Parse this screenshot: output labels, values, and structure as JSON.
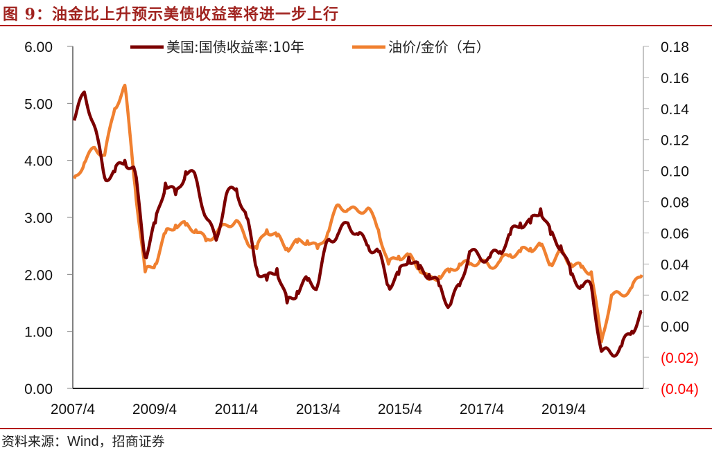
{
  "figure": {
    "title": "图 9：油金比上升预示美债收益率将进一步上行",
    "source_prefix": "资料来源：",
    "source_latin": "Wind",
    "source_suffix": "，招商证券"
  },
  "colors": {
    "title": "#a0231f",
    "rule": "#b31b1b",
    "series_yield": "#7b0000",
    "series_ratio": "#f08030",
    "negative_label": "#ff0000"
  },
  "chart_data": {
    "type": "line",
    "title": "油金比上升预示美债收益率将进一步上行",
    "xlabel": "",
    "ylabel": "",
    "y2label": "",
    "x_tick_labels": [
      "2007/4",
      "2009/4",
      "2011/4",
      "2013/4",
      "2015/4",
      "2017/4",
      "2019/4"
    ],
    "y_left": {
      "ticks": [
        "6.00",
        "5.00",
        "4.00",
        "3.00",
        "2.00",
        "1.00",
        "0.00"
      ],
      "ylim": [
        0,
        6
      ]
    },
    "y_right": {
      "ticks": [
        "0.18",
        "0.16",
        "0.14",
        "0.12",
        "0.10",
        "0.08",
        "0.06",
        "0.04",
        "0.02",
        "0.00",
        "(0.02)",
        "(0.04)"
      ],
      "ylim": [
        -0.04,
        0.18
      ]
    },
    "grid": false,
    "legend_position": "top",
    "legend": [
      "美国:国债收益率:10年",
      "油价/金价（右）"
    ],
    "x": [
      "2007/4",
      "2007/7",
      "2007/10",
      "2008/1",
      "2008/4",
      "2008/7",
      "2008/10",
      "2009/1",
      "2009/4",
      "2009/7",
      "2009/10",
      "2010/1",
      "2010/4",
      "2010/7",
      "2010/10",
      "2011/1",
      "2011/4",
      "2011/7",
      "2011/10",
      "2012/1",
      "2012/4",
      "2012/7",
      "2012/10",
      "2013/1",
      "2013/4",
      "2013/7",
      "2013/10",
      "2014/1",
      "2014/4",
      "2014/7",
      "2014/10",
      "2015/1",
      "2015/4",
      "2015/7",
      "2015/10",
      "2016/1",
      "2016/4",
      "2016/7",
      "2016/10",
      "2017/1",
      "2017/4",
      "2017/7",
      "2017/10",
      "2018/1",
      "2018/4",
      "2018/7",
      "2018/10",
      "2019/1",
      "2019/4",
      "2019/7",
      "2019/10",
      "2020/1",
      "2020/4",
      "2020/7",
      "2020/10",
      "2021/1",
      "2021/3"
    ],
    "series": [
      {
        "name": "美国:国债收益率:10年",
        "axis": "left",
        "values": [
          4.7,
          5.2,
          4.6,
          3.7,
          3.8,
          4.0,
          3.8,
          2.3,
          2.9,
          3.6,
          3.4,
          3.8,
          3.7,
          3.0,
          2.6,
          3.4,
          3.5,
          3.0,
          2.1,
          1.9,
          2.1,
          1.5,
          1.7,
          1.9,
          1.8,
          2.6,
          2.7,
          2.9,
          2.7,
          2.5,
          2.4,
          1.8,
          2.0,
          2.3,
          2.1,
          2.0,
          1.8,
          1.45,
          1.8,
          2.4,
          2.3,
          2.3,
          2.4,
          2.7,
          2.9,
          2.9,
          3.15,
          2.7,
          2.5,
          2.0,
          1.8,
          1.8,
          0.65,
          0.6,
          0.75,
          1.0,
          1.35
        ]
      },
      {
        "name": "油价/金价（右）",
        "axis": "right",
        "values": [
          0.095,
          0.105,
          0.115,
          0.11,
          0.14,
          0.155,
          0.09,
          0.035,
          0.04,
          0.06,
          0.065,
          0.065,
          0.062,
          0.055,
          0.06,
          0.065,
          0.068,
          0.055,
          0.05,
          0.062,
          0.058,
          0.05,
          0.054,
          0.055,
          0.05,
          0.06,
          0.078,
          0.075,
          0.074,
          0.076,
          0.062,
          0.04,
          0.045,
          0.045,
          0.038,
          0.03,
          0.032,
          0.035,
          0.04,
          0.04,
          0.042,
          0.038,
          0.042,
          0.046,
          0.048,
          0.05,
          0.052,
          0.04,
          0.048,
          0.04,
          0.038,
          0.035,
          -0.01,
          0.02,
          0.02,
          0.025,
          0.033
        ]
      }
    ]
  }
}
